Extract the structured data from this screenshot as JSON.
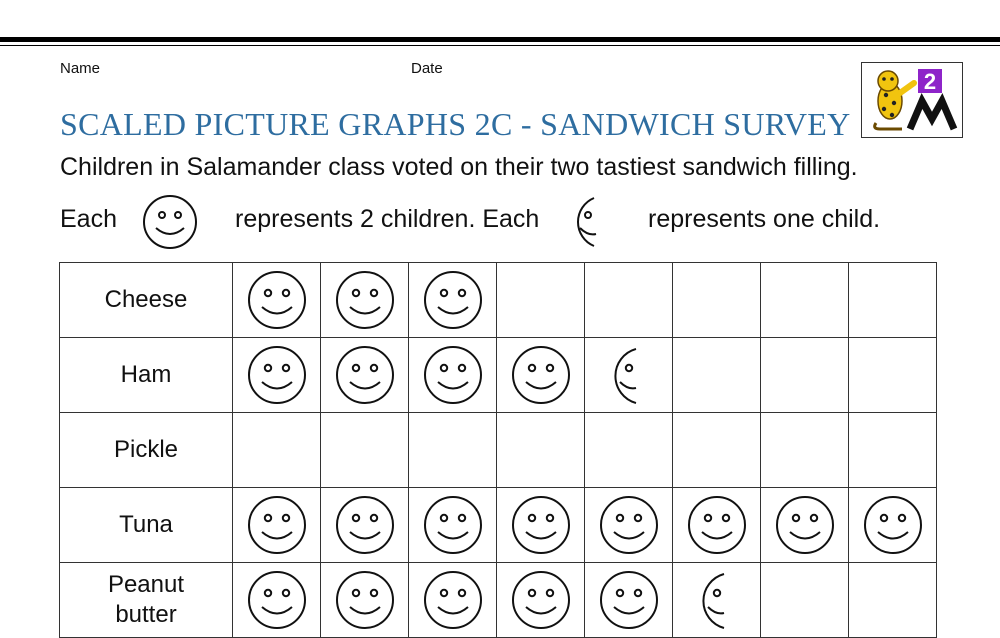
{
  "header": {
    "name_label": "Name",
    "date_label": "Date"
  },
  "title": "SCALED PICTURE GRAPHS 2C - SANDWICH SURVEY",
  "intro": "Children in Salamander class voted on their two tastiest sandwich filling.",
  "key": {
    "each_1": "Each",
    "full_text": "represents 2 children. Each",
    "half_text": "represents one child."
  },
  "logo": {
    "badge": "2"
  },
  "icons": {
    "full": "smiley-face-icon",
    "half": "half-smiley-face-icon"
  },
  "chart_data": {
    "type": "pictograph",
    "scale": {
      "full_symbol": 2,
      "half_symbol": 1
    },
    "categories": [
      "Cheese",
      "Ham",
      "Pickle",
      "Tuna",
      "Peanut butter"
    ],
    "rows": [
      {
        "label": "Cheese",
        "full": 3,
        "half": 0
      },
      {
        "label": "Ham",
        "full": 4,
        "half": 1
      },
      {
        "label": "Pickle",
        "full": 0,
        "half": 0
      },
      {
        "label": "Tuna",
        "full": 8,
        "half": 0
      },
      {
        "label": "Peanut butter",
        "label_lines": [
          "Peanut",
          "butter"
        ],
        "full": 5,
        "half": 1
      }
    ]
  }
}
